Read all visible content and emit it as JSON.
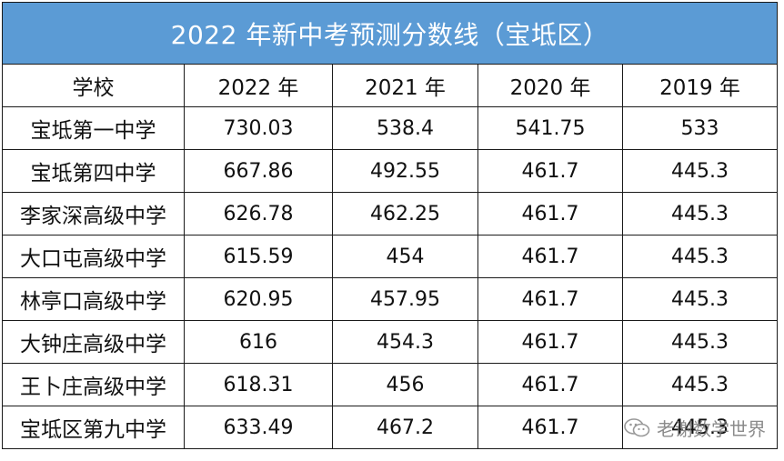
{
  "table": {
    "title": "2022 年新中考预测分数线（宝坻区）",
    "headers": [
      "学校",
      "2022 年",
      "2021 年",
      "2020 年",
      "2019 年"
    ],
    "rows": [
      [
        "宝坻第一中学",
        "730.03",
        "538.4",
        "541.75",
        "533"
      ],
      [
        "宝坻第四中学",
        "667.86",
        "492.55",
        "461.7",
        "445.3"
      ],
      [
        "李家深高级中学",
        "626.78",
        "462.25",
        "461.7",
        "445.3"
      ],
      [
        "大口屯高级中学",
        "615.59",
        "454",
        "461.7",
        "445.3"
      ],
      [
        "林亭口高级中学",
        "620.95",
        "457.95",
        "461.7",
        "445.3"
      ],
      [
        "大钟庄高级中学",
        "616",
        "454.3",
        "461.7",
        "445.3"
      ],
      [
        "王卜庄高级中学",
        "618.31",
        "456",
        "461.7",
        "445.3"
      ],
      [
        "宝坻区第九中学",
        "633.49",
        "467.2",
        "461.7",
        "445.3"
      ]
    ]
  },
  "watermark": {
    "text": "老谢数学世界",
    "icon": "wechat-icon"
  },
  "colors": {
    "title_bg": "#5b9bd5",
    "title_text": "#ffffff",
    "border": "#1a1a1a"
  }
}
